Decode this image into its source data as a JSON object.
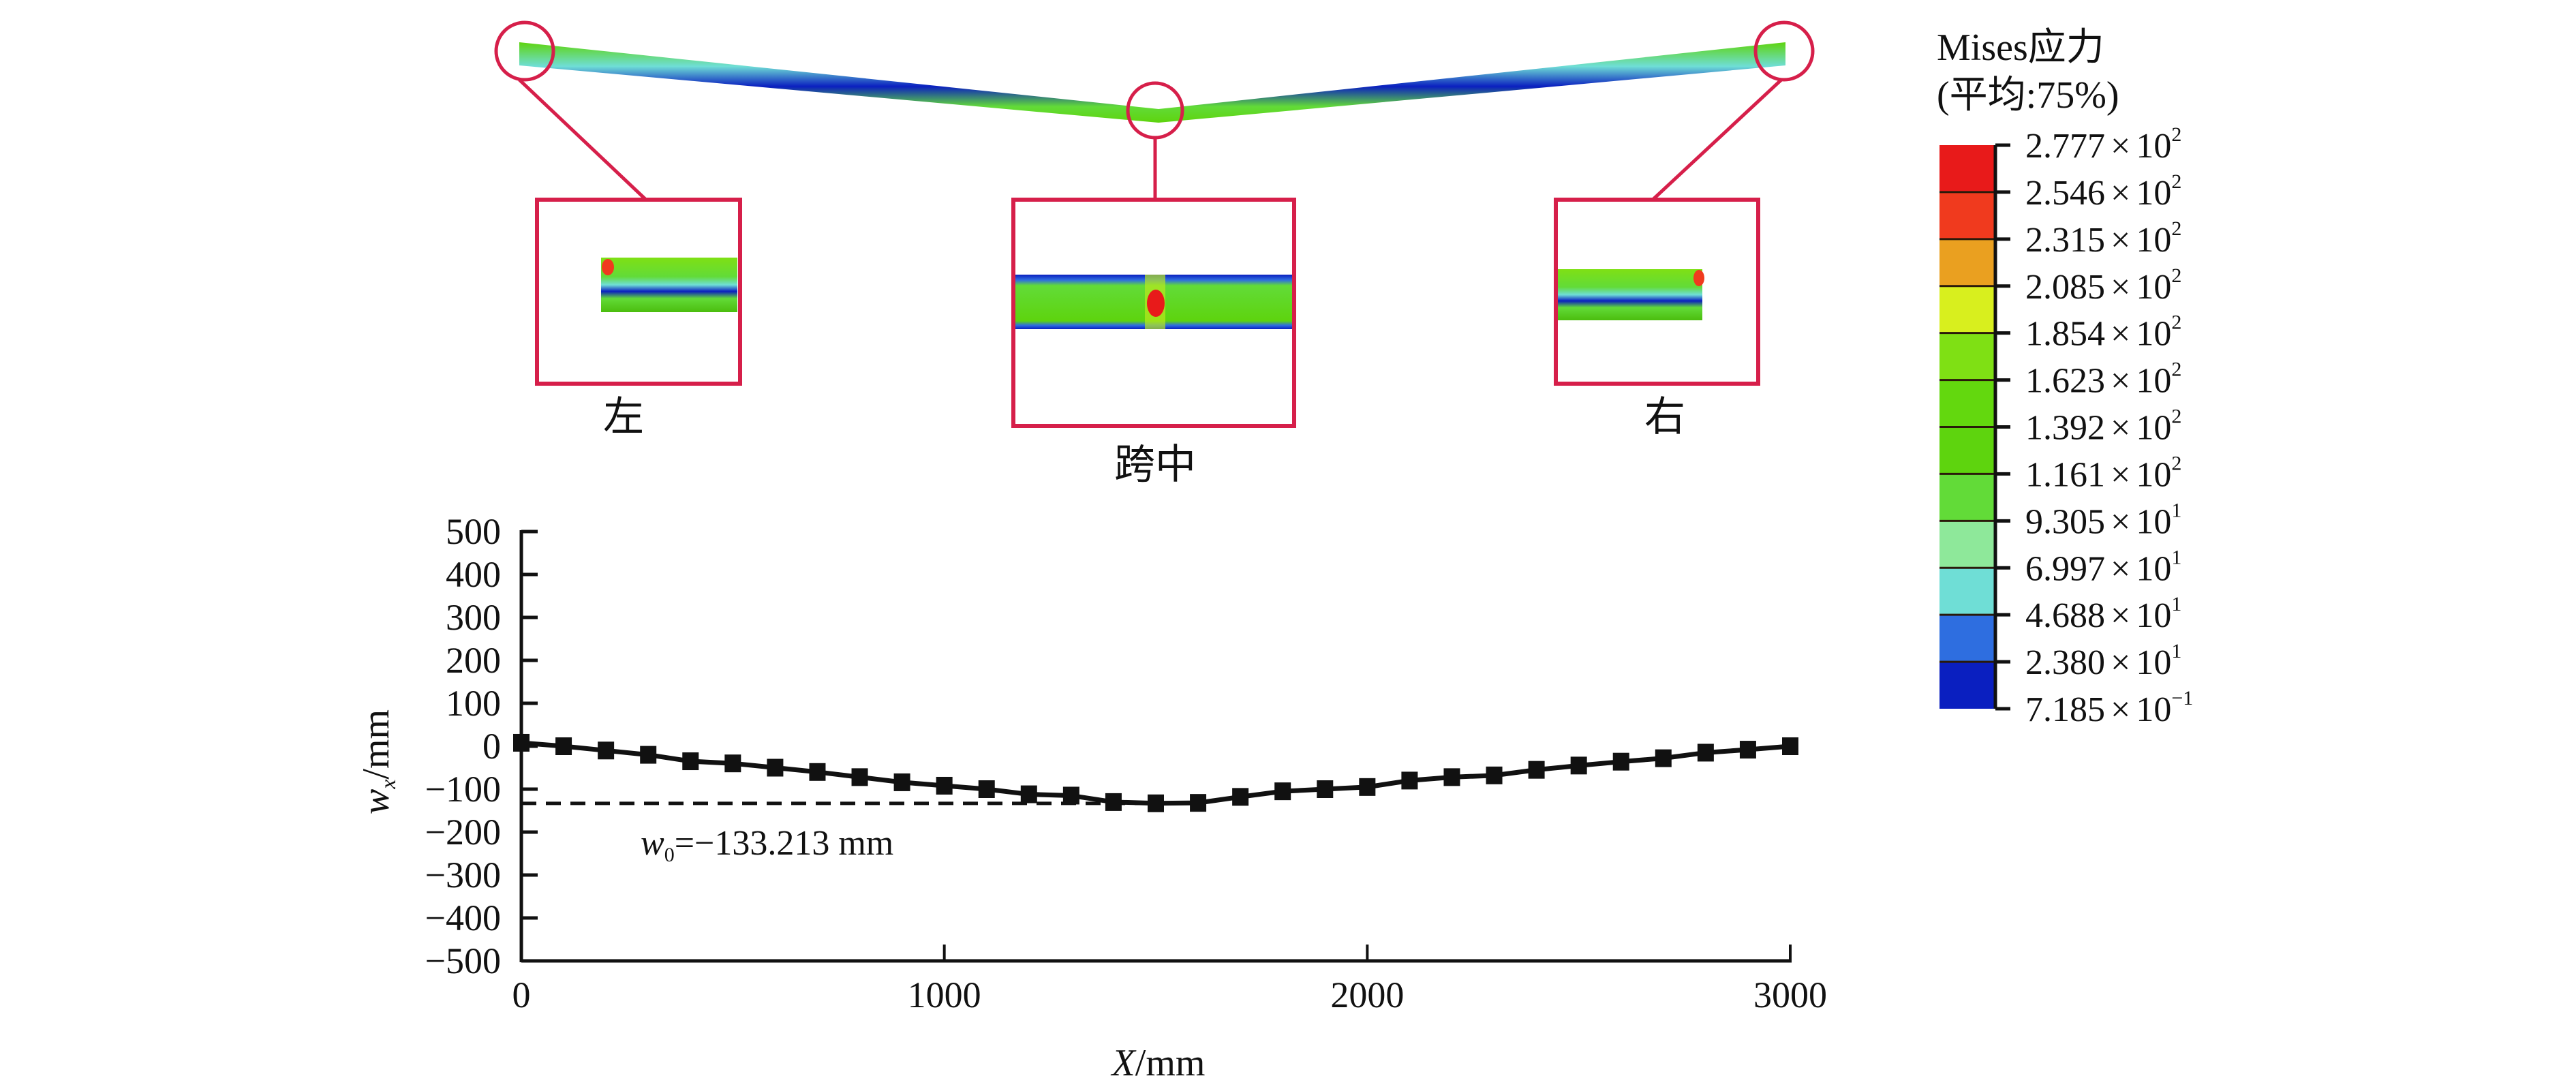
{
  "figure": {
    "zoom_panels": [
      {
        "label": "左"
      },
      {
        "label": "跨中"
      },
      {
        "label": "右"
      }
    ],
    "colors": {
      "highlight": "#d61f4a",
      "axis": "#111111"
    }
  },
  "legend": {
    "title_line1": "Mises应力",
    "title_line2": "(平均:75%)",
    "entries": [
      {
        "mantissa": "2.777",
        "exp": "2",
        "color": "#e81a1a"
      },
      {
        "mantissa": "2.546",
        "exp": "2",
        "color": "#f03a1e"
      },
      {
        "mantissa": "2.315",
        "exp": "2",
        "color": "#eaa020"
      },
      {
        "mantissa": "2.085",
        "exp": "2",
        "color": "#d8ef1e"
      },
      {
        "mantissa": "1.854",
        "exp": "2",
        "color": "#7fe014"
      },
      {
        "mantissa": "1.623",
        "exp": "2",
        "color": "#63d80e"
      },
      {
        "mantissa": "1.392",
        "exp": "2",
        "color": "#5ed40e"
      },
      {
        "mantissa": "1.161",
        "exp": "2",
        "color": "#62db38"
      },
      {
        "mantissa": "9.305",
        "exp": "1",
        "color": "#8ee89a"
      },
      {
        "mantissa": "6.997",
        "exp": "1",
        "color": "#6fded6"
      },
      {
        "mantissa": "4.688",
        "exp": "1",
        "color": "#2e6ee0"
      },
      {
        "mantissa": "2.380",
        "exp": "1",
        "color": "#0a1fc0"
      },
      {
        "mantissa": "7.185",
        "exp": "-1",
        "color": null
      }
    ],
    "times": "×",
    "ten": "10"
  },
  "chart_data": {
    "type": "line",
    "xlabel_var": "X",
    "xlabel_unit": "/mm",
    "ylabel_var": "w",
    "ylabel_sub": "x",
    "ylabel_unit": "/mm",
    "xlim": [
      0,
      3000
    ],
    "ylim": [
      -500,
      500
    ],
    "xticks": [
      0,
      1000,
      2000,
      3000
    ],
    "xtick_labels": [
      "0",
      "1000",
      "2000",
      "3000"
    ],
    "yticks": [
      500,
      400,
      300,
      200,
      100,
      0,
      -100,
      -200,
      -300,
      -400,
      -500
    ],
    "ytick_labels": [
      "500",
      "400",
      "300",
      "200",
      "100",
      "0",
      "−100",
      "−200",
      "−300",
      "−400",
      "−500"
    ],
    "grid": false,
    "series": [
      {
        "name": "w_x",
        "marker": "square",
        "x": [
          0,
          100,
          200,
          300,
          400,
          500,
          600,
          700,
          800,
          900,
          1000,
          1100,
          1200,
          1300,
          1400,
          1500,
          1600,
          1700,
          1800,
          1900,
          2000,
          2100,
          2200,
          2300,
          2400,
          2500,
          2600,
          2700,
          2800,
          2900,
          3000
        ],
        "y": [
          8,
          0,
          -10,
          -20,
          -35,
          -40,
          -50,
          -60,
          -72,
          -84,
          -92,
          -100,
          -112,
          -115,
          -130,
          -133,
          -132,
          -118,
          -105,
          -100,
          -95,
          -80,
          -72,
          -68,
          -55,
          -45,
          -36,
          -28,
          -15,
          -8,
          0
        ]
      }
    ],
    "reference_line": {
      "y": -133.213,
      "style": "dashed",
      "x_from": 0,
      "x_to": 1500
    },
    "annotation": {
      "var": "w",
      "sub": "0",
      "text": "=−133.213 mm"
    }
  }
}
